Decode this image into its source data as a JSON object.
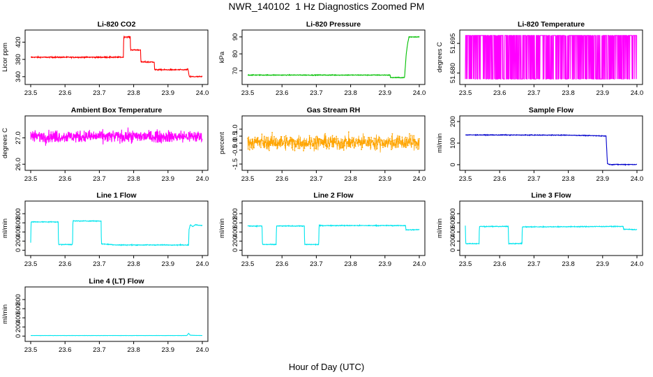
{
  "title": "NWR_140102  1 Hz Diagnostics Zoomed PM",
  "xlabel": "Hour of Day (UTC)",
  "chart_data": [
    {
      "type": "line",
      "title": "Li-820 CO2",
      "ylabel": "Licor ppm",
      "color": "#ff0000",
      "xlim": [
        23.5,
        24.0
      ],
      "ylim": [
        330,
        440
      ],
      "xticks": [
        "23.5",
        "23.6",
        "23.7",
        "23.8",
        "23.9",
        "24.0"
      ],
      "yticks": [
        "340",
        "380",
        "420"
      ],
      "noise": 1.2,
      "series": [
        {
          "name": "CO2",
          "points": [
            [
              23.5,
              385
            ],
            [
              23.77,
              385
            ],
            [
              23.771,
              432
            ],
            [
              23.79,
              432
            ],
            [
              23.791,
              402
            ],
            [
              23.82,
              402
            ],
            [
              23.821,
              374
            ],
            [
              23.86,
              374
            ],
            [
              23.861,
              356
            ],
            [
              23.955,
              356
            ],
            [
              23.958,
              358
            ],
            [
              23.962,
              340
            ],
            [
              24.0,
              340
            ]
          ]
        }
      ]
    },
    {
      "type": "line",
      "title": "Li-820 Pressure",
      "ylabel": "kPa",
      "color": "#00c000",
      "xlim": [
        23.5,
        24.0
      ],
      "ylim": [
        64,
        92
      ],
      "xticks": [
        "23.5",
        "23.6",
        "23.7",
        "23.8",
        "23.9",
        "24.0"
      ],
      "yticks": [
        "70",
        "80",
        "90"
      ],
      "noise": 0.2,
      "series": [
        {
          "name": "Pressure",
          "points": [
            [
              23.5,
              67.5
            ],
            [
              23.915,
              67.5
            ],
            [
              23.916,
              66
            ],
            [
              23.957,
              66
            ],
            [
              23.962,
              80
            ],
            [
              23.966,
              86
            ],
            [
              23.97,
              90
            ],
            [
              24.0,
              90
            ]
          ]
        }
      ]
    },
    {
      "type": "line",
      "title": "Li-820 Temperature",
      "ylabel": "degrees C",
      "color": "#ff00ff",
      "xlim": [
        23.5,
        24.0
      ],
      "ylim": [
        51.676,
        51.7
      ],
      "xticks": [
        "23.5",
        "23.6",
        "23.7",
        "23.8",
        "23.9",
        "24.0"
      ],
      "yticks": [
        "51.680",
        "51.695"
      ],
      "mode": "binary",
      "levels": [
        51.677,
        51.699
      ],
      "series": [
        {
          "name": "Temperature",
          "points": [
            [
              23.5,
              51.688
            ],
            [
              24.0,
              51.688
            ]
          ]
        }
      ]
    },
    {
      "type": "line",
      "title": "Ambient Box Temperature",
      "ylabel": "degrees C",
      "color": "#ff00ff",
      "xlim": [
        23.5,
        24.0
      ],
      "ylim": [
        25.9,
        27.7
      ],
      "xticks": [
        "23.5",
        "23.6",
        "23.7",
        "23.8",
        "23.9",
        "24.0"
      ],
      "yticks": [
        "26.0",
        "27.0"
      ],
      "noise": 0.22,
      "series": [
        {
          "name": "Box Temperature",
          "points": [
            [
              23.5,
              27.05
            ],
            [
              24.0,
              27.05
            ]
          ]
        }
      ]
    },
    {
      "type": "line",
      "title": "Gas Stream RH",
      "ylabel": "percent",
      "color": "#ffa500",
      "xlim": [
        23.5,
        24.0
      ],
      "ylim": [
        -1.7,
        1.7
      ],
      "xticks": [
        "23.5",
        "23.6",
        "23.7",
        "23.8",
        "23.9",
        "24.0"
      ],
      "yticks": [
        "-1.5",
        "-0.5",
        "0.0",
        "0.5",
        "1.0"
      ],
      "noise": 0.5,
      "markers": true,
      "series": [
        {
          "name": "RH",
          "points": [
            [
              23.5,
              0.05
            ],
            [
              24.0,
              0.05
            ]
          ]
        }
      ]
    },
    {
      "type": "line",
      "title": "Sample Flow",
      "ylabel": "ml/min",
      "color": "#0000cc",
      "xlim": [
        23.5,
        24.0
      ],
      "ylim": [
        -10,
        210
      ],
      "xticks": [
        "23.5",
        "23.6",
        "23.7",
        "23.8",
        "23.9",
        "24.0"
      ],
      "yticks": [
        "0",
        "100",
        "200"
      ],
      "noise": 1.5,
      "series": [
        {
          "name": "Sample Flow",
          "points": [
            [
              23.5,
              138
            ],
            [
              23.8,
              137
            ],
            [
              23.91,
              133
            ],
            [
              23.914,
              5
            ],
            [
              23.92,
              1
            ],
            [
              24.0,
              1
            ]
          ]
        }
      ]
    },
    {
      "type": "line",
      "title": "Line 1 Flow",
      "ylabel": "ml/min",
      "color": "#00e5ee",
      "xlim": [
        23.5,
        24.0
      ],
      "ylim": [
        -40,
        1000
      ],
      "xticks": [
        "23.5",
        "23.6",
        "23.7",
        "23.8",
        "23.9",
        "24.0"
      ],
      "yticks": [
        "0",
        "200",
        "400",
        "600",
        "800"
      ],
      "noise": 8,
      "series": [
        {
          "name": "Line 1",
          "points": [
            [
              23.5,
              160
            ],
            [
              23.501,
              620
            ],
            [
              23.58,
              620
            ],
            [
              23.581,
              125
            ],
            [
              23.622,
              125
            ],
            [
              23.623,
              640
            ],
            [
              23.705,
              640
            ],
            [
              23.706,
              140
            ],
            [
              23.75,
              115
            ],
            [
              23.96,
              115
            ],
            [
              23.961,
              440
            ],
            [
              23.965,
              560
            ],
            [
              23.972,
              520
            ],
            [
              23.98,
              555
            ],
            [
              24.0,
              540
            ]
          ]
        }
      ]
    },
    {
      "type": "line",
      "title": "Line 2 Flow",
      "ylabel": "ml/min",
      "color": "#00e5ee",
      "xlim": [
        23.5,
        24.0
      ],
      "ylim": [
        -40,
        1000
      ],
      "xticks": [
        "23.5",
        "23.6",
        "23.7",
        "23.8",
        "23.9",
        "24.0"
      ],
      "yticks": [
        "0",
        "200",
        "400",
        "600",
        "800"
      ],
      "noise": 8,
      "series": [
        {
          "name": "Line 2",
          "points": [
            [
              23.5,
              530
            ],
            [
              23.542,
              530
            ],
            [
              23.543,
              125
            ],
            [
              23.583,
              125
            ],
            [
              23.584,
              530
            ],
            [
              23.665,
              530
            ],
            [
              23.666,
              125
            ],
            [
              23.707,
              125
            ],
            [
              23.708,
              540
            ],
            [
              23.96,
              540
            ],
            [
              23.961,
              445
            ],
            [
              24.0,
              450
            ]
          ]
        }
      ]
    },
    {
      "type": "line",
      "title": "Line 3 Flow",
      "ylabel": "ml/min",
      "color": "#00e5ee",
      "xlim": [
        23.5,
        24.0
      ],
      "ylim": [
        -40,
        1000
      ],
      "xticks": [
        "23.5",
        "23.6",
        "23.7",
        "23.8",
        "23.9",
        "24.0"
      ],
      "yticks": [
        "0",
        "200",
        "400",
        "600",
        "800"
      ],
      "noise": 8,
      "series": [
        {
          "name": "Line 3",
          "points": [
            [
              23.5,
              540
            ],
            [
              23.501,
              145
            ],
            [
              23.54,
              145
            ],
            [
              23.541,
              520
            ],
            [
              23.625,
              520
            ],
            [
              23.626,
              145
            ],
            [
              23.665,
              145
            ],
            [
              23.666,
              510
            ],
            [
              23.92,
              520
            ],
            [
              23.96,
              520
            ],
            [
              23.961,
              460
            ],
            [
              24.0,
              450
            ]
          ]
        }
      ]
    },
    {
      "type": "line",
      "title": "Line 4 (LT) Flow",
      "ylabel": "ml/min",
      "color": "#00e5ee",
      "xlim": [
        23.5,
        24.0
      ],
      "ylim": [
        -40,
        1000
      ],
      "xticks": [
        "23.5",
        "23.6",
        "23.7",
        "23.8",
        "23.9",
        "24.0"
      ],
      "yticks": [
        "0",
        "200",
        "400",
        "600",
        "800"
      ],
      "noise": 2,
      "series": [
        {
          "name": "Line 4",
          "points": [
            [
              23.5,
              12
            ],
            [
              23.955,
              12
            ],
            [
              23.96,
              60
            ],
            [
              23.965,
              18
            ],
            [
              24.0,
              12
            ]
          ]
        }
      ]
    }
  ]
}
